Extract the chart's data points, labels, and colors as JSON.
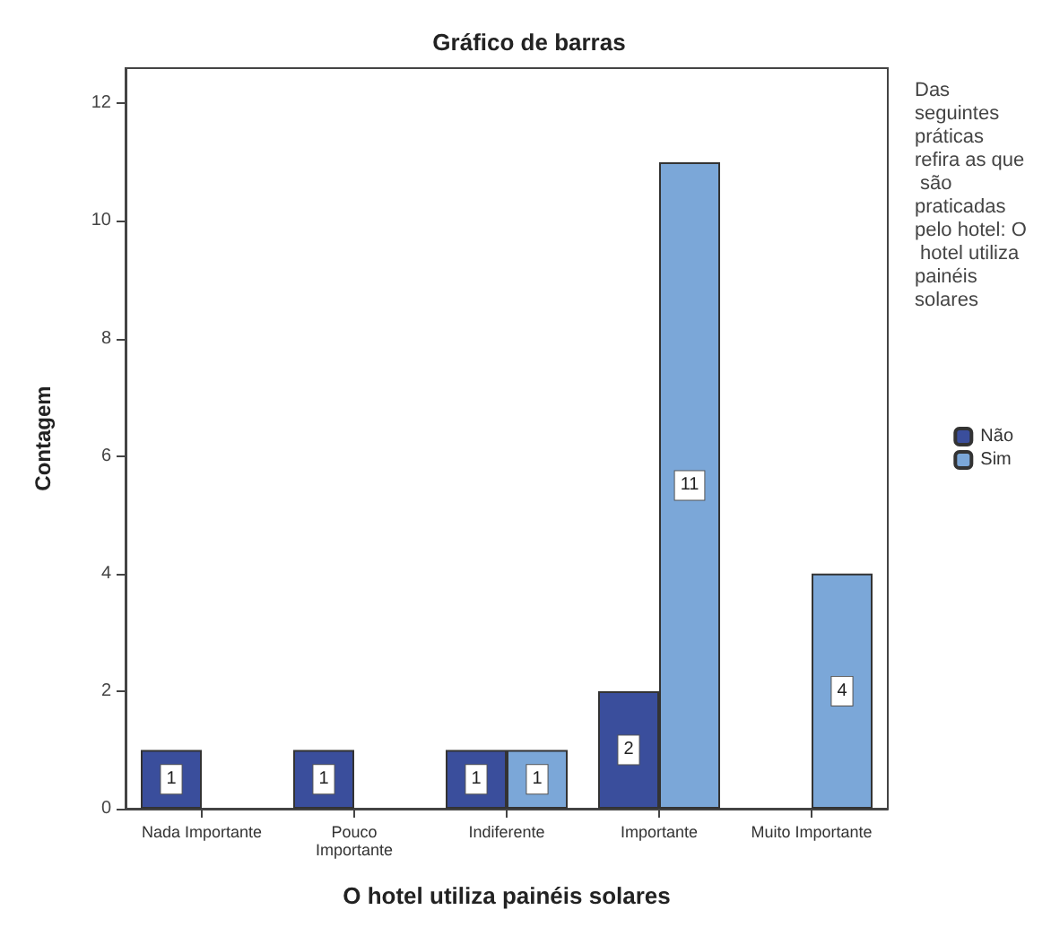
{
  "chart_data": {
    "type": "bar",
    "title": "Gráfico de barras",
    "xlabel": "O hotel utiliza painéis solares",
    "ylabel": "Contagem",
    "legend_title": "Das seguintes práticas refira as que são praticadas pelo hotel: O hotel utiliza painéis solares",
    "categories": [
      "Nada Importante",
      "Pouco\nImportante",
      "Indiferente",
      "Importante",
      "Muito Importante"
    ],
    "series": [
      {
        "name": "Não",
        "color": "#3a4e9c",
        "values": [
          1,
          1,
          1,
          2,
          null
        ]
      },
      {
        "name": "Sim",
        "color": "#7ba7d8",
        "values": [
          null,
          null,
          1,
          11,
          4
        ]
      }
    ],
    "ylim": [
      0,
      12.6
    ],
    "yticks": [
      0,
      2,
      4,
      6,
      8,
      10,
      12
    ],
    "grid": false,
    "legend": "right",
    "data_labels": true
  }
}
